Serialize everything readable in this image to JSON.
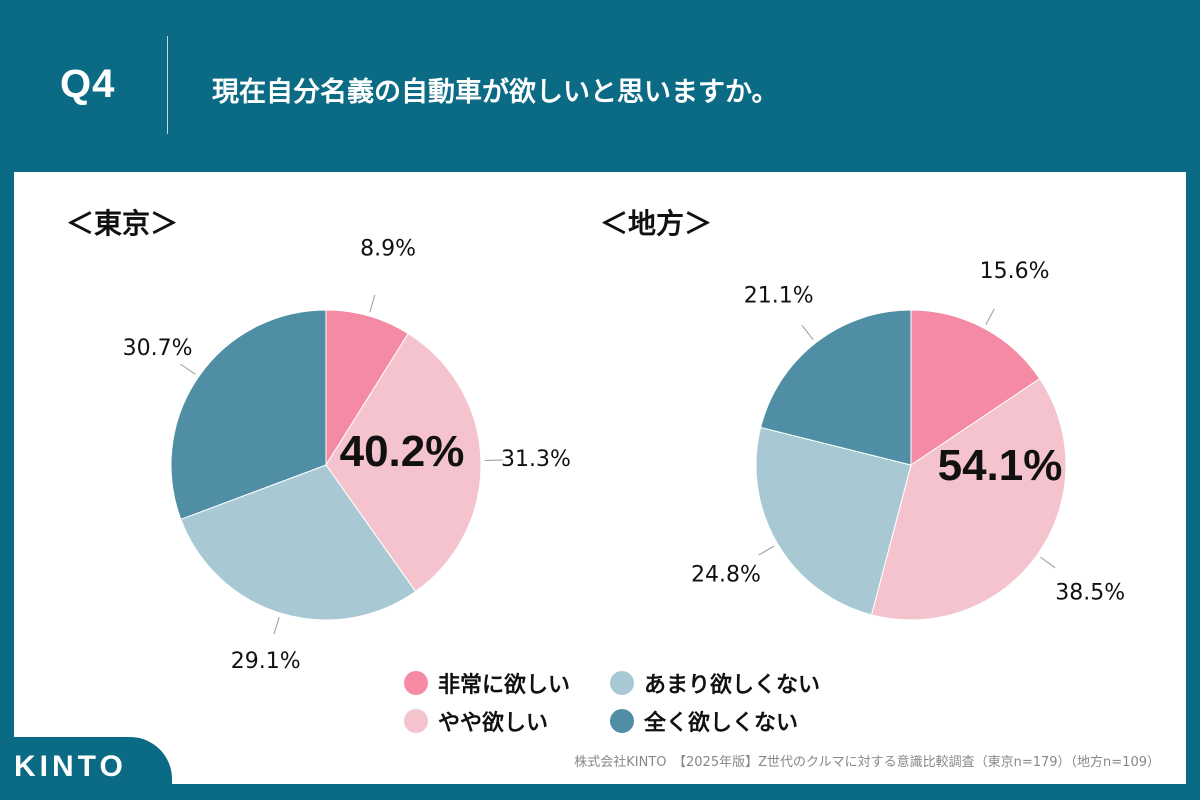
{
  "header": {
    "q_label": "Q4",
    "question": "現在自分名義の自動車が欲しいと思いますか。"
  },
  "colors": {
    "background": "#0b6b85",
    "very_want": "#f48aa3",
    "somewhat_want": "#f4c3cd",
    "not_much": "#a8c8d4",
    "not_at_all": "#4f8ea5"
  },
  "chart_data": [
    {
      "type": "pie",
      "title": "＜東京＞",
      "center_label": "40.2%",
      "categories": [
        "非常に欲しい",
        "やや欲しい",
        "あまり欲しくない",
        "全く欲しくない"
      ],
      "values": [
        8.9,
        31.3,
        29.1,
        30.7
      ],
      "value_labels": [
        "8.9%",
        "31.3%",
        "29.1%",
        "30.7%"
      ]
    },
    {
      "type": "pie",
      "title": "＜地方＞",
      "center_label": "54.1%",
      "categories": [
        "非常に欲しい",
        "やや欲しい",
        "あまり欲しくない",
        "全く欲しくない"
      ],
      "values": [
        15.6,
        38.5,
        24.8,
        21.1
      ],
      "value_labels": [
        "15.6%",
        "38.5%",
        "24.8%",
        "21.1%"
      ]
    }
  ],
  "legend": [
    "非常に欲しい",
    "あまり欲しくない",
    "やや欲しい",
    "全く欲しくない"
  ],
  "footer": {
    "source": "株式会社KINTO　【2025年版】Z世代のクルマに対する意識比較調査（東京n=179）（地方n=109）"
  },
  "brand": {
    "logo": "KINTO"
  }
}
